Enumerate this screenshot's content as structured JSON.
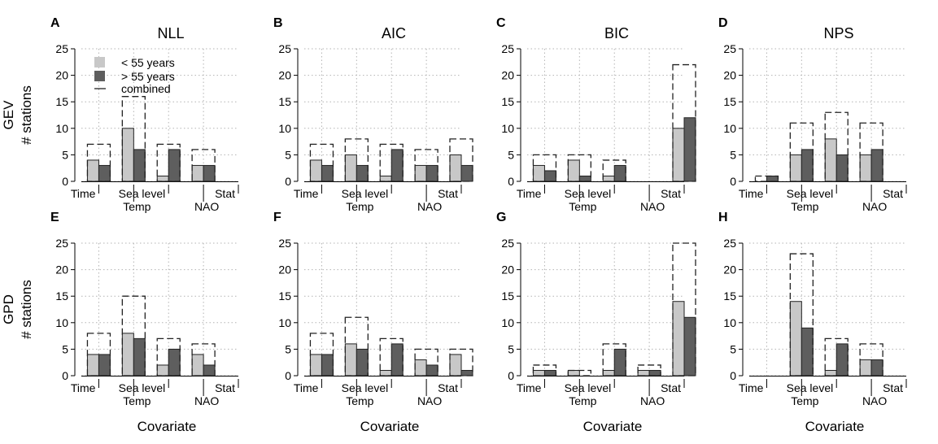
{
  "figure": {
    "row_labels": [
      "GEV",
      "GPD"
    ],
    "ylabel": "# stations",
    "xlabel": "Covariate",
    "legend": {
      "entries": [
        {
          "label": "< 55 years",
          "style": "light-fill"
        },
        {
          "label": "> 55 years",
          "style": "dark-fill"
        },
        {
          "label": "combined",
          "style": "dashed-outline"
        }
      ],
      "placement": "top-left of panel A"
    },
    "colors": {
      "light": "#c8c8c8",
      "dark": "#5e5e5e",
      "outline": "#222222",
      "grid": "#b3b3b3"
    }
  },
  "chart_data": [
    {
      "panel": "A",
      "title": "NLL",
      "row": "GEV",
      "type": "bar",
      "categories": [
        "Time",
        "Temp",
        "Sea level",
        "NAO",
        "Stat"
      ],
      "ylim": [
        0,
        25
      ],
      "yticks": [
        0,
        5,
        10,
        15,
        20,
        25
      ],
      "grid": true,
      "series": [
        {
          "name": "< 55 years",
          "values": [
            4,
            10,
            1,
            3,
            0
          ]
        },
        {
          "name": "> 55 years",
          "values": [
            3,
            6,
            6,
            3,
            0
          ]
        },
        {
          "name": "combined",
          "values": [
            7,
            16,
            7,
            6,
            0
          ]
        }
      ]
    },
    {
      "panel": "B",
      "title": "AIC",
      "row": "GEV",
      "type": "bar",
      "categories": [
        "Time",
        "Temp",
        "Sea level",
        "NAO",
        "Stat"
      ],
      "ylim": [
        0,
        25
      ],
      "yticks": [
        0,
        5,
        10,
        15,
        20,
        25
      ],
      "grid": true,
      "series": [
        {
          "name": "< 55 years",
          "values": [
            4,
            5,
            1,
            3,
            5
          ]
        },
        {
          "name": "> 55 years",
          "values": [
            3,
            3,
            6,
            3,
            3
          ]
        },
        {
          "name": "combined",
          "values": [
            7,
            8,
            7,
            6,
            8
          ]
        }
      ]
    },
    {
      "panel": "C",
      "title": "BIC",
      "row": "GEV",
      "type": "bar",
      "categories": [
        "Time",
        "Temp",
        "Sea level",
        "NAO",
        "Stat"
      ],
      "ylim": [
        0,
        25
      ],
      "yticks": [
        0,
        5,
        10,
        15,
        20,
        25
      ],
      "grid": true,
      "series": [
        {
          "name": "< 55 years",
          "values": [
            3,
            4,
            1,
            0,
            10
          ]
        },
        {
          "name": "> 55 years",
          "values": [
            2,
            1,
            3,
            0,
            12
          ]
        },
        {
          "name": "combined",
          "values": [
            5,
            5,
            4,
            0,
            22
          ]
        }
      ]
    },
    {
      "panel": "D",
      "title": "NPS",
      "row": "GEV",
      "type": "bar",
      "categories": [
        "Time",
        "Temp",
        "Sea level",
        "NAO",
        "Stat"
      ],
      "ylim": [
        0,
        25
      ],
      "yticks": [
        0,
        5,
        10,
        15,
        20,
        25
      ],
      "grid": true,
      "series": [
        {
          "name": "< 55 years",
          "values": [
            0,
            5,
            8,
            5,
            0
          ]
        },
        {
          "name": "> 55 years",
          "values": [
            1,
            6,
            5,
            6,
            0
          ]
        },
        {
          "name": "combined",
          "values": [
            1,
            11,
            13,
            11,
            0
          ]
        }
      ]
    },
    {
      "panel": "E",
      "title": "",
      "row": "GPD",
      "type": "bar",
      "categories": [
        "Time",
        "Temp",
        "Sea level",
        "NAO",
        "Stat"
      ],
      "ylim": [
        0,
        25
      ],
      "yticks": [
        0,
        5,
        10,
        15,
        20,
        25
      ],
      "grid": true,
      "series": [
        {
          "name": "< 55 years",
          "values": [
            4,
            8,
            2,
            4,
            0
          ]
        },
        {
          "name": "> 55 years",
          "values": [
            4,
            7,
            5,
            2,
            0
          ]
        },
        {
          "name": "combined",
          "values": [
            8,
            15,
            7,
            6,
            0
          ]
        }
      ]
    },
    {
      "panel": "F",
      "title": "",
      "row": "GPD",
      "type": "bar",
      "categories": [
        "Time",
        "Temp",
        "Sea level",
        "NAO",
        "Stat"
      ],
      "ylim": [
        0,
        25
      ],
      "yticks": [
        0,
        5,
        10,
        15,
        20,
        25
      ],
      "grid": true,
      "series": [
        {
          "name": "< 55 years",
          "values": [
            4,
            6,
            1,
            3,
            4
          ]
        },
        {
          "name": "> 55 years",
          "values": [
            4,
            5,
            6,
            2,
            1
          ]
        },
        {
          "name": "combined",
          "values": [
            8,
            11,
            7,
            5,
            5
          ]
        }
      ]
    },
    {
      "panel": "G",
      "title": "",
      "row": "GPD",
      "type": "bar",
      "categories": [
        "Time",
        "Temp",
        "Sea level",
        "NAO",
        "Stat"
      ],
      "ylim": [
        0,
        25
      ],
      "yticks": [
        0,
        5,
        10,
        15,
        20,
        25
      ],
      "grid": true,
      "series": [
        {
          "name": "< 55 years",
          "values": [
            1,
            1,
            1,
            1,
            14
          ]
        },
        {
          "name": "> 55 years",
          "values": [
            1,
            0,
            5,
            1,
            11
          ]
        },
        {
          "name": "combined",
          "values": [
            2,
            1,
            6,
            2,
            25
          ]
        }
      ]
    },
    {
      "panel": "H",
      "title": "",
      "row": "GPD",
      "type": "bar",
      "categories": [
        "Time",
        "Temp",
        "Sea level",
        "NAO",
        "Stat"
      ],
      "ylim": [
        0,
        25
      ],
      "yticks": [
        0,
        5,
        10,
        15,
        20,
        25
      ],
      "grid": true,
      "series": [
        {
          "name": "< 55 years",
          "values": [
            0,
            14,
            1,
            3,
            0
          ]
        },
        {
          "name": "> 55 years",
          "values": [
            0,
            9,
            6,
            3,
            0
          ]
        },
        {
          "name": "combined",
          "values": [
            0,
            23,
            7,
            6,
            0
          ]
        }
      ]
    }
  ]
}
